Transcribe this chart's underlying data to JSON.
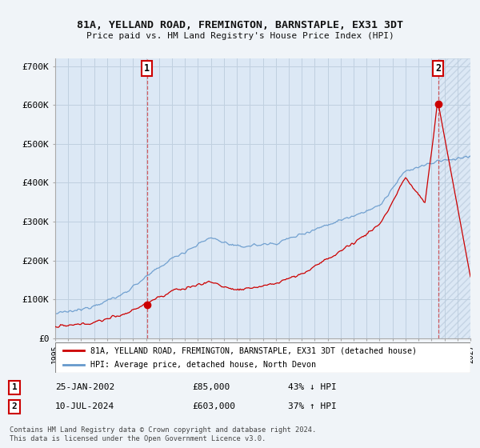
{
  "title": "81A, YELLAND ROAD, FREMINGTON, BARNSTAPLE, EX31 3DT",
  "subtitle": "Price paid vs. HM Land Registry's House Price Index (HPI)",
  "ylim": [
    0,
    720000
  ],
  "yticks": [
    0,
    100000,
    200000,
    300000,
    400000,
    500000,
    600000,
    700000
  ],
  "ytick_labels": [
    "£0",
    "£100K",
    "£200K",
    "£300K",
    "£400K",
    "£500K",
    "£600K",
    "£700K"
  ],
  "background_color": "#f0f4f8",
  "plot_background": "#dce8f5",
  "grid_color": "#c0d0e0",
  "hpi_color": "#6699cc",
  "price_color": "#cc0000",
  "sale1_x": 2002.07,
  "sale1_y": 85000,
  "sale2_x": 2024.53,
  "sale2_y": 603000,
  "legend_label_price": "81A, YELLAND ROAD, FREMINGTON, BARNSTAPLE, EX31 3DT (detached house)",
  "legend_label_hpi": "HPI: Average price, detached house, North Devon",
  "annotation1_date": "25-JAN-2002",
  "annotation1_price": "£85,000",
  "annotation1_hpi": "43% ↓ HPI",
  "annotation2_date": "10-JUL-2024",
  "annotation2_price": "£603,000",
  "annotation2_hpi": "37% ↑ HPI",
  "footer": "Contains HM Land Registry data © Crown copyright and database right 2024.\nThis data is licensed under the Open Government Licence v3.0.",
  "xmin": 1995,
  "xmax": 2027
}
